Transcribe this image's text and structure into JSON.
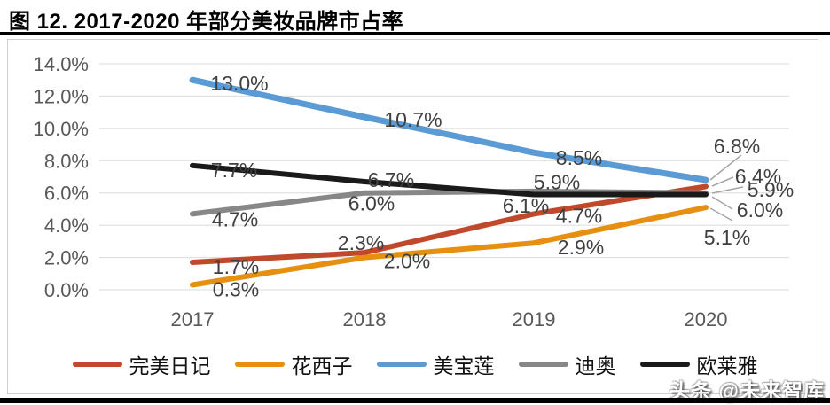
{
  "figure": {
    "title": "图 12. 2017-2020 年部分美妆品牌市占率",
    "watermark": "头条 @未来智库"
  },
  "chart_data": {
    "type": "line",
    "title": "图 12. 2017-2020 年部分美妆品牌市占率",
    "x_labels": [
      "2017",
      "2018",
      "2019",
      "2020"
    ],
    "y_ticks": [
      "14.0%",
      "12.0%",
      "10.0%",
      "8.0%",
      "6.0%",
      "4.0%",
      "2.0%",
      "0.0%"
    ],
    "ylim": [
      0,
      14
    ],
    "xlabel": "",
    "ylabel": "",
    "grid": true,
    "legend_position": "bottom",
    "colors": {
      "axis_text": "#595959",
      "data_label_text": "#404040",
      "gridline": "#DBDBDB",
      "leader_line": "#A6A6A6",
      "chart_border": "#D0D0D0"
    },
    "series": [
      {
        "name": "完美日记",
        "color": "#C0492B",
        "values": [
          1.7,
          2.3,
          4.7,
          6.4
        ],
        "labels": [
          "1.7%",
          "2.3%",
          "4.7%",
          "6.4%"
        ]
      },
      {
        "name": "花西子",
        "color": "#E78F10",
        "values": [
          0.3,
          2.0,
          2.9,
          5.1
        ],
        "labels": [
          "0.3%",
          "2.0%",
          "2.9%",
          "5.1%"
        ]
      },
      {
        "name": "美宝莲",
        "color": "#5B9BD5",
        "values": [
          13.0,
          10.7,
          8.5,
          6.8
        ],
        "labels": [
          "13.0%",
          "10.7%",
          "8.5%",
          "6.8%"
        ]
      },
      {
        "name": "迪奥",
        "color": "#878787",
        "values": [
          4.7,
          6.0,
          6.1,
          6.0
        ],
        "labels": [
          "4.7%",
          "6.0%",
          "6.1%",
          "6.0%"
        ]
      },
      {
        "name": "欧莱雅",
        "color": "#1A1A1A",
        "values": [
          7.7,
          6.7,
          5.9,
          5.9
        ],
        "labels": [
          "7.7%",
          "6.7%",
          "5.9%",
          "5.9%"
        ]
      }
    ]
  }
}
